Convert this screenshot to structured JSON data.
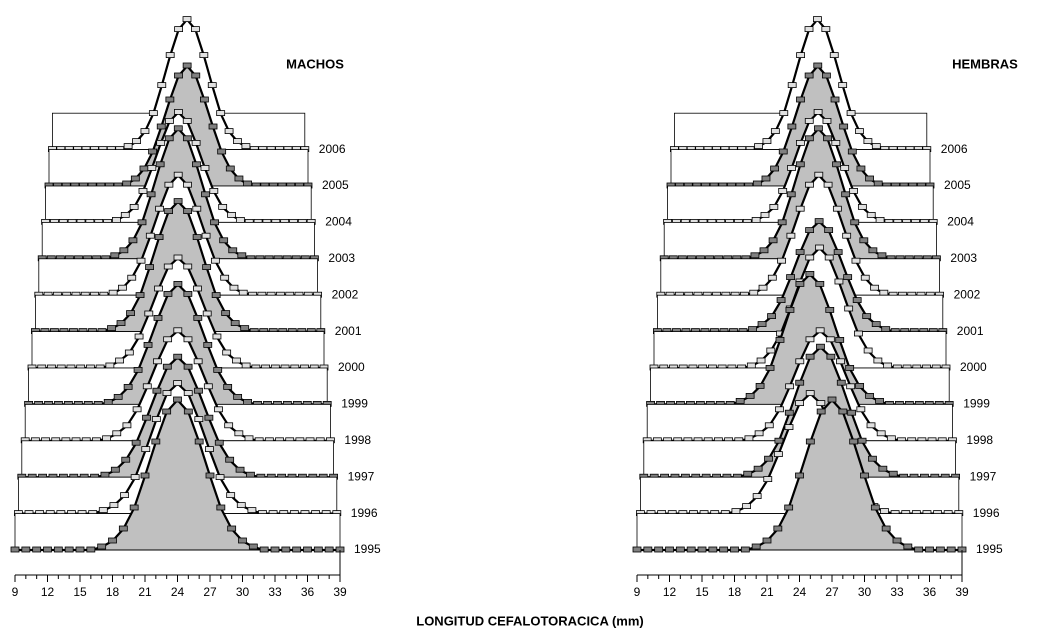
{
  "axis_label": "LONGITUD CEFALOTORACICA (mm)",
  "chart_data": [
    {
      "type": "ridge",
      "title": "MACHOS",
      "x": [
        9,
        10,
        11,
        12,
        13,
        14,
        15,
        16,
        17,
        18,
        19,
        20,
        21,
        22,
        23,
        24,
        25,
        26,
        27,
        28,
        29,
        30,
        31,
        32,
        33,
        34,
        35,
        36,
        37,
        38,
        39
      ],
      "xlim": [
        9,
        39
      ],
      "xticks": [
        9,
        12,
        15,
        18,
        21,
        24,
        27,
        30,
        33,
        36,
        39
      ],
      "series": [
        {
          "name": "1995",
          "color": "#c0c0c0",
          "values": [
            0,
            0,
            0,
            0,
            0,
            0,
            0,
            0,
            0.3,
            0.9,
            2.1,
            4.2,
            7.4,
            10.8,
            13.8,
            15,
            13.8,
            10.8,
            7.4,
            4.2,
            2.1,
            0.9,
            0.3,
            0,
            0,
            0,
            0,
            0,
            0,
            0,
            0
          ]
        },
        {
          "name": "1996",
          "color": "#ffffff",
          "values": [
            0,
            0,
            0,
            0,
            0,
            0,
            0,
            0,
            0.3,
            0.8,
            1.8,
            3.6,
            6.4,
            9.4,
            12,
            13,
            12,
            9.4,
            6.4,
            3.6,
            1.8,
            0.8,
            0.3,
            0,
            0,
            0,
            0,
            0,
            0,
            0,
            0
          ]
        },
        {
          "name": "1997",
          "color": "#c0c0c0",
          "values": [
            0,
            0,
            0,
            0,
            0,
            0,
            0,
            0,
            0.2,
            0.7,
            1.7,
            3.4,
            5.9,
            8.6,
            11,
            12,
            11,
            8.6,
            5.9,
            3.4,
            1.7,
            0.7,
            0.2,
            0,
            0,
            0,
            0,
            0,
            0,
            0,
            0
          ]
        },
        {
          "name": "1998",
          "color": "#ffffff",
          "values": [
            0,
            0,
            0,
            0,
            0,
            0,
            0,
            0,
            0.2,
            0.7,
            1.5,
            3.1,
            5.4,
            7.9,
            10.1,
            11,
            10.1,
            7.9,
            5.4,
            3.1,
            1.5,
            0.7,
            0.2,
            0,
            0,
            0,
            0,
            0,
            0,
            0,
            0
          ]
        },
        {
          "name": "1999",
          "color": "#c0c0c0",
          "values": [
            0,
            0,
            0,
            0,
            0,
            0,
            0,
            0,
            0.2,
            0.7,
            1.7,
            3.4,
            5.9,
            8.6,
            11,
            12,
            11,
            8.6,
            5.9,
            3.4,
            1.7,
            0.7,
            0.2,
            0,
            0,
            0,
            0,
            0,
            0,
            0,
            0
          ]
        },
        {
          "name": "2000",
          "color": "#ffffff",
          "values": [
            0,
            0,
            0,
            0,
            0,
            0,
            0,
            0,
            0.2,
            0.7,
            1.5,
            3.1,
            5.4,
            7.9,
            10.1,
            11,
            10.1,
            7.9,
            5.4,
            3.1,
            1.5,
            0.7,
            0.2,
            0,
            0,
            0,
            0,
            0,
            0,
            0,
            0
          ]
        },
        {
          "name": "2001",
          "color": "#c0c0c0",
          "values": [
            0,
            0,
            0,
            0,
            0,
            0,
            0,
            0,
            0.3,
            0.8,
            1.8,
            3.6,
            6.4,
            9.4,
            12,
            13,
            12,
            9.4,
            6.4,
            3.6,
            1.8,
            0.8,
            0.3,
            0,
            0,
            0,
            0,
            0,
            0,
            0,
            0
          ]
        },
        {
          "name": "2002",
          "color": "#ffffff",
          "values": [
            0,
            0,
            0,
            0,
            0,
            0,
            0,
            0,
            0.2,
            0.7,
            1.7,
            3.4,
            5.9,
            8.6,
            11,
            12,
            11,
            8.6,
            5.9,
            3.4,
            1.7,
            0.7,
            0.2,
            0,
            0,
            0,
            0,
            0,
            0,
            0,
            0
          ]
        },
        {
          "name": "2003",
          "color": "#c0c0c0",
          "values": [
            0,
            0,
            0,
            0,
            0,
            0,
            0,
            0,
            0.3,
            0.8,
            1.8,
            3.6,
            6.4,
            9.4,
            12,
            13,
            12,
            9.4,
            6.4,
            3.6,
            1.8,
            0.8,
            0.3,
            0,
            0,
            0,
            0,
            0,
            0,
            0,
            0
          ]
        },
        {
          "name": "2004",
          "color": "#ffffff",
          "values": [
            0,
            0,
            0,
            0,
            0,
            0,
            0,
            0,
            0.2,
            0.7,
            1.5,
            3.1,
            5.4,
            7.9,
            10.1,
            11,
            10.1,
            7.9,
            5.4,
            3.1,
            1.5,
            0.7,
            0.2,
            0,
            0,
            0,
            0,
            0,
            0,
            0,
            0
          ]
        },
        {
          "name": "2005",
          "color": "#c0c0c0",
          "values": [
            0,
            0,
            0,
            0,
            0,
            0,
            0,
            0,
            0,
            0.2,
            0.7,
            1.7,
            3.4,
            5.9,
            8.6,
            11,
            12,
            11,
            8.6,
            5.9,
            3.4,
            1.7,
            0.7,
            0.2,
            0,
            0,
            0,
            0,
            0,
            0,
            0
          ]
        },
        {
          "name": "2006",
          "color": "#ffffff",
          "values": [
            0,
            0,
            0,
            0,
            0,
            0,
            0,
            0,
            0,
            0.3,
            0.8,
            1.8,
            3.6,
            6.4,
            9.4,
            12,
            13,
            12,
            9.4,
            6.4,
            3.6,
            1.8,
            0.8,
            0.3,
            0,
            0,
            0,
            0,
            0,
            0,
            0
          ]
        }
      ]
    },
    {
      "type": "ridge",
      "title": "HEMBRAS",
      "x": [
        9,
        10,
        11,
        12,
        13,
        14,
        15,
        16,
        17,
        18,
        19,
        20,
        21,
        22,
        23,
        24,
        25,
        26,
        27,
        28,
        29,
        30,
        31,
        32,
        33,
        34,
        35,
        36,
        37,
        38,
        39
      ],
      "xlim": [
        9,
        39
      ],
      "xticks": [
        9,
        12,
        15,
        18,
        21,
        24,
        27,
        30,
        33,
        36,
        39
      ],
      "series": [
        {
          "name": "1995",
          "color": "#c0c0c0",
          "values": [
            0,
            0,
            0,
            0,
            0,
            0,
            0,
            0,
            0,
            0,
            0,
            0.3,
            0.9,
            2.1,
            4.2,
            7.4,
            10.8,
            13.8,
            15,
            13.8,
            10.8,
            7.4,
            4.2,
            2.1,
            0.9,
            0.3,
            0,
            0,
            0,
            0,
            0
          ]
        },
        {
          "name": "1996",
          "color": "#ffffff",
          "values": [
            0,
            0,
            0,
            0,
            0,
            0,
            0,
            0,
            0,
            0.2,
            0.7,
            1.7,
            3.4,
            5.9,
            8.6,
            11,
            12,
            11,
            8.6,
            5.9,
            3.4,
            1.7,
            0.7,
            0.2,
            0,
            0,
            0,
            0,
            0,
            0,
            0
          ]
        },
        {
          "name": "1997",
          "color": "#c0c0c0",
          "values": [
            0,
            0,
            0,
            0,
            0,
            0,
            0,
            0,
            0,
            0,
            0.3,
            0.8,
            1.8,
            3.6,
            6.4,
            9.4,
            12,
            13,
            12,
            9.4,
            6.4,
            3.6,
            1.8,
            0.8,
            0.3,
            0,
            0,
            0,
            0,
            0,
            0
          ]
        },
        {
          "name": "1998",
          "color": "#ffffff",
          "values": [
            0,
            0,
            0,
            0,
            0,
            0,
            0,
            0,
            0,
            0,
            0.2,
            0.7,
            1.5,
            3.1,
            5.4,
            7.9,
            10.1,
            11,
            10.1,
            7.9,
            5.4,
            3.1,
            1.5,
            0.7,
            0.2,
            0,
            0,
            0,
            0,
            0,
            0
          ]
        },
        {
          "name": "1999",
          "color": "#c0c0c0",
          "values": [
            0,
            0,
            0,
            0,
            0,
            0,
            0,
            0,
            0,
            0.3,
            0.8,
            1.8,
            3.6,
            6.4,
            9.4,
            12,
            13,
            12,
            9.4,
            6.4,
            3.6,
            1.8,
            0.8,
            0.3,
            0,
            0,
            0,
            0,
            0,
            0,
            0
          ]
        },
        {
          "name": "2000",
          "color": "#ffffff",
          "values": [
            0,
            0,
            0,
            0,
            0,
            0,
            0,
            0,
            0,
            0,
            0.2,
            0.7,
            1.7,
            3.4,
            5.9,
            8.6,
            11,
            12,
            11,
            8.6,
            5.9,
            3.4,
            1.7,
            0.7,
            0.2,
            0,
            0,
            0,
            0,
            0,
            0
          ]
        },
        {
          "name": "2001",
          "color": "#c0c0c0",
          "values": [
            0,
            0,
            0,
            0,
            0,
            0,
            0,
            0,
            0,
            0,
            0.2,
            0.7,
            1.5,
            3.1,
            5.4,
            7.9,
            10.1,
            11,
            10.1,
            7.9,
            5.4,
            3.1,
            1.5,
            0.7,
            0.2,
            0,
            0,
            0,
            0,
            0,
            0
          ]
        },
        {
          "name": "2002",
          "color": "#ffffff",
          "values": [
            0,
            0,
            0,
            0,
            0,
            0,
            0,
            0,
            0,
            0,
            0.2,
            0.7,
            1.7,
            3.4,
            5.9,
            8.6,
            11,
            12,
            11,
            8.6,
            5.9,
            3.4,
            1.7,
            0.7,
            0.2,
            0,
            0,
            0,
            0,
            0,
            0
          ]
        },
        {
          "name": "2003",
          "color": "#c0c0c0",
          "values": [
            0,
            0,
            0,
            0,
            0,
            0,
            0,
            0,
            0,
            0,
            0.3,
            0.8,
            1.8,
            3.6,
            6.4,
            9.4,
            12,
            13,
            12,
            9.4,
            6.4,
            3.6,
            1.8,
            0.8,
            0.3,
            0,
            0,
            0,
            0,
            0,
            0
          ]
        },
        {
          "name": "2004",
          "color": "#ffffff",
          "values": [
            0,
            0,
            0,
            0,
            0,
            0,
            0,
            0,
            0,
            0,
            0.2,
            0.7,
            1.5,
            3.1,
            5.4,
            7.9,
            10.1,
            11,
            10.1,
            7.9,
            5.4,
            3.1,
            1.5,
            0.7,
            0.2,
            0,
            0,
            0,
            0,
            0,
            0
          ]
        },
        {
          "name": "2005",
          "color": "#c0c0c0",
          "values": [
            0,
            0,
            0,
            0,
            0,
            0,
            0,
            0,
            0,
            0,
            0.2,
            0.7,
            1.7,
            3.4,
            5.9,
            8.6,
            11,
            12,
            11,
            8.6,
            5.9,
            3.4,
            1.7,
            0.7,
            0.2,
            0,
            0,
            0,
            0,
            0,
            0
          ]
        },
        {
          "name": "2006",
          "color": "#ffffff",
          "values": [
            0,
            0,
            0,
            0,
            0,
            0,
            0,
            0,
            0,
            0,
            0.3,
            0.8,
            1.8,
            3.6,
            6.4,
            9.4,
            12,
            13,
            12,
            9.4,
            6.4,
            3.6,
            1.8,
            0.8,
            0.3,
            0,
            0,
            0,
            0,
            0,
            0
          ]
        }
      ]
    }
  ]
}
